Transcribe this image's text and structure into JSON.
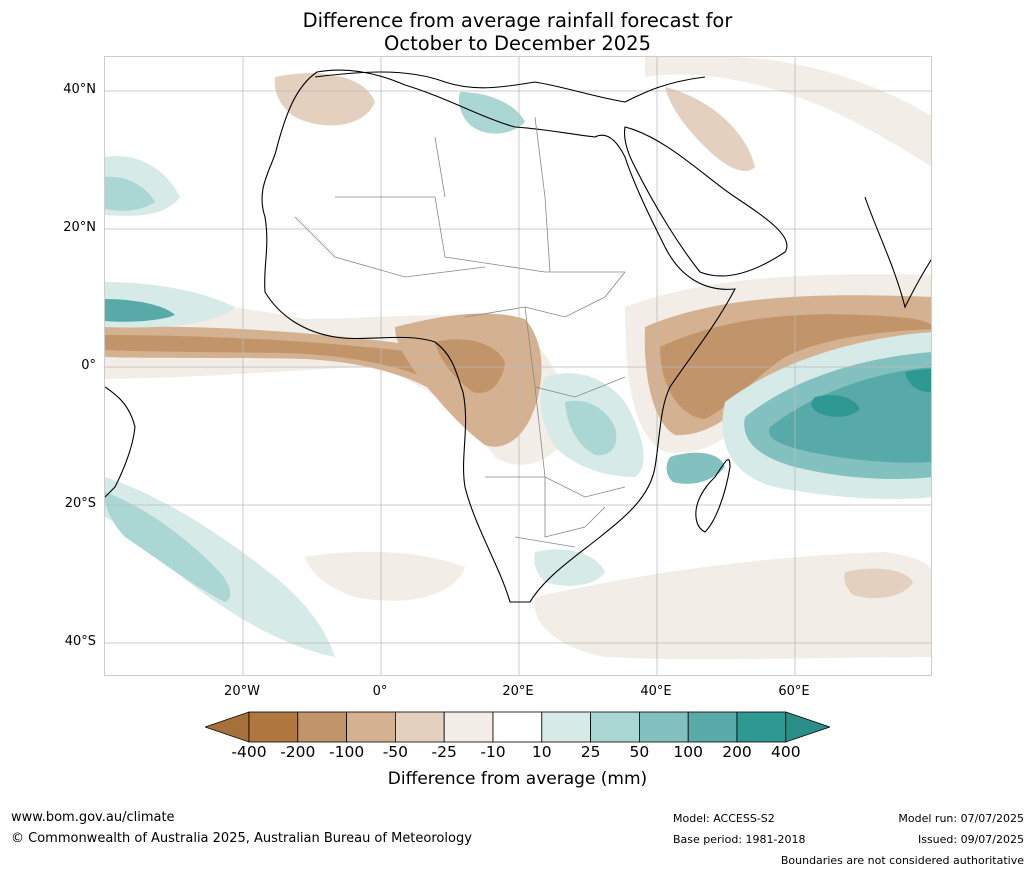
{
  "title": {
    "line1": "Difference from average rainfall forecast for",
    "line2": "October to December 2025"
  },
  "map": {
    "lat_labels": [
      "40°N",
      "20°N",
      "0°",
      "20°S",
      "40°S"
    ],
    "lon_labels": [
      "20°W",
      "0°",
      "20°E",
      "40°E",
      "60°E"
    ],
    "lat_values": [
      40,
      20,
      0,
      -20,
      -40
    ],
    "lon_values": [
      -20,
      0,
      20,
      40,
      60
    ],
    "extent": {
      "lon": [
        -40,
        80
      ],
      "lat": [
        -45,
        45
      ]
    }
  },
  "legend": {
    "title": "Difference from average (mm)",
    "ticks": [
      "-400",
      "-200",
      "-100",
      "-50",
      "-25",
      "-10",
      "10",
      "25",
      "50",
      "100",
      "200",
      "400"
    ],
    "colors": [
      "#a5703a",
      "#b0773f",
      "#c29469",
      "#d4b190",
      "#e4d0bf",
      "#f2ede7",
      "#ffffff",
      "#d6eae8",
      "#aad6d4",
      "#82c1bf",
      "#58aaa8",
      "#2e9893",
      "#2a8f8a"
    ]
  },
  "footer": {
    "website": "www.bom.gov.au/climate",
    "copyright": "© Commonwealth of Australia 2025, Australian Bureau of Meteorology",
    "model": "Model: ACCESS-S2",
    "base_period": "Base period: 1981-2018",
    "model_run": "Model run: 07/07/2025",
    "issued": "Issued: 09/07/2025",
    "disclaimer": "Boundaries are not considered authoritative"
  }
}
